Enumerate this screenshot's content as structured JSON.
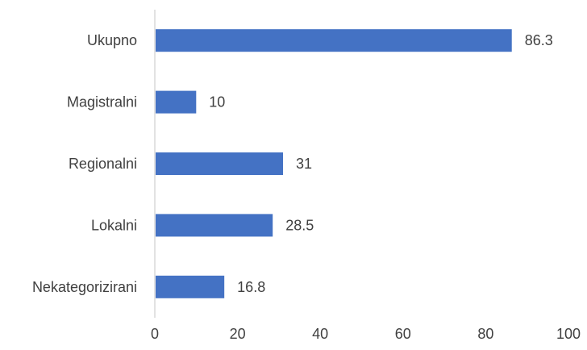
{
  "chart_data": {
    "type": "bar",
    "orientation": "horizontal",
    "categories": [
      "Ukupno",
      "Magistralni",
      "Regionalni",
      "Lokalni",
      "Nekategorizirani"
    ],
    "values": [
      86.3,
      10,
      31,
      28.5,
      16.8
    ],
    "value_labels": [
      "86.3",
      "10",
      "31",
      "28.5",
      "16.8"
    ],
    "x_ticks": [
      "0",
      "20",
      "40",
      "60",
      "80",
      "100"
    ],
    "xlim": [
      0,
      100
    ],
    "title": "",
    "xlabel": "",
    "ylabel": "",
    "grid": false,
    "legend": "none",
    "bar_color": "#4472C4",
    "axis_color": "#D9D9D9",
    "text_color": "#404040"
  }
}
